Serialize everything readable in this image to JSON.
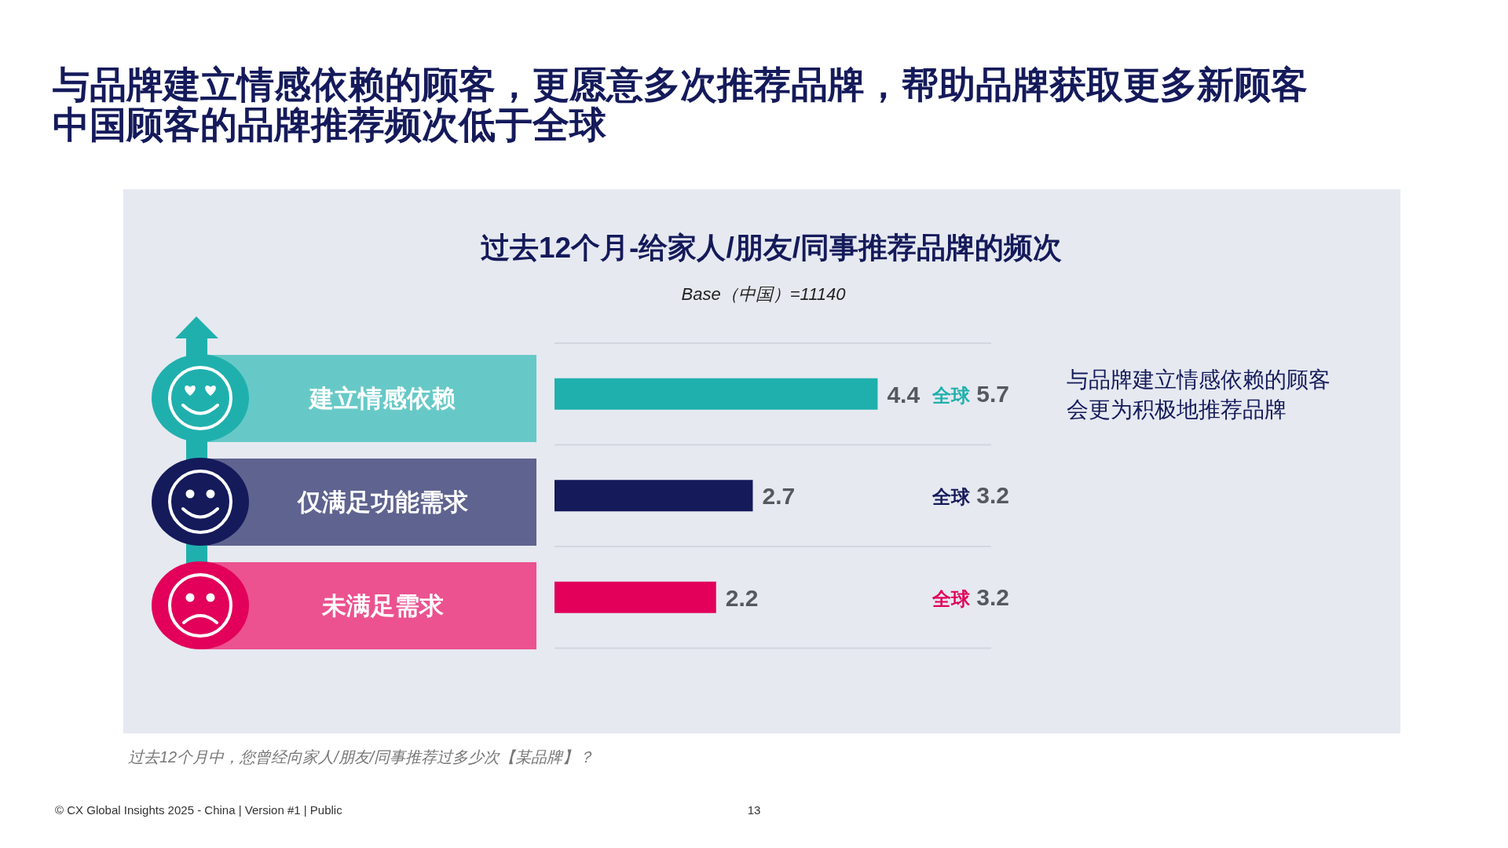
{
  "chart_data": {
    "type": "bar",
    "orientation": "horizontal",
    "title": "与品牌建立情感依赖的顾客，更愿意多次推荐品牌，帮助品牌获取更多新顾客",
    "subtitle": "中国顾客的品牌推荐频次低于全球",
    "categories": [
      "建立情感依赖",
      "仅满足功能需求",
      "未满足需求"
    ],
    "values": [
      4.4,
      2.7,
      2.2
    ],
    "colors": [
      "#1fb0ad",
      "#141a5a",
      "#e2005a"
    ],
    "data_labels": true,
    "grid": true,
    "annotations": [
      "过去12个月-给家人/朋友/同事推荐品牌的频次",
      "Base（中国）=11140",
      "全球 5.7",
      "全球 3.2",
      "全球 3.2",
      "与品牌建立情感依赖的顾客会更为积极地推荐品牌",
      "过去12个月中，您曾经向家人/朋友/同事推荐过多少次【某品牌】？",
      "© CX Global Insights 2025 - China | Version #1 | Public",
      "13"
    ]
  }
}
